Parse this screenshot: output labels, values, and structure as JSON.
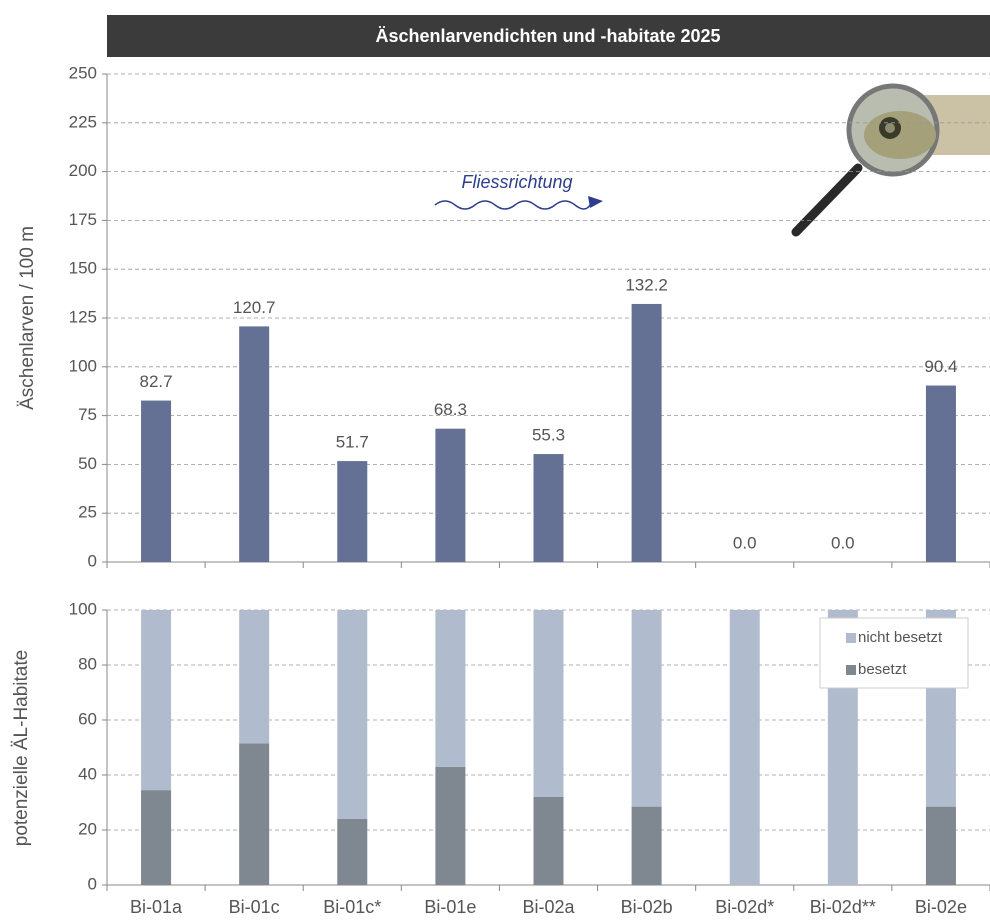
{
  "chart_data": [
    {
      "type": "bar",
      "title": "Äschenlarvendichten und -habitate 2025",
      "y_label": "Äschenlarven / 100 m",
      "annotation": "Fliessrichtung",
      "values": [
        82.7,
        120.7,
        51.7,
        68.3,
        55.3,
        132.2,
        0.0,
        0.0,
        90.4
      ],
      "value_labels": [
        "82.7",
        "120.7",
        "51.7",
        "68.3",
        "55.3",
        "132.2",
        "0.0",
        "0.0",
        "90.4"
      ],
      "color": "#647194",
      "ylim": [
        0,
        250
      ],
      "yticks": [
        0,
        25,
        50,
        75,
        100,
        125,
        150,
        175,
        200,
        225,
        250
      ],
      "grid": true
    },
    {
      "type": "stacked_bar",
      "y_label": "potenzielle ÄL-Habitate",
      "categories": [
        "Bi-01a",
        "Bi-01c",
        "Bi-01c*",
        "Bi-01e",
        "Bi-02a",
        "Bi-02b",
        "Bi-02d*",
        "Bi-02d**",
        "Bi-02e"
      ],
      "series": [
        {
          "name": "besetzt",
          "color": "#7f8790",
          "values": [
            34.5,
            51.5,
            24,
            43,
            32,
            28.5,
            0,
            0,
            28.5
          ]
        },
        {
          "name": "nicht besetzt",
          "color": "#b0bccd",
          "values": [
            65.5,
            48.5,
            76,
            57,
            68,
            71.5,
            100,
            100,
            71.5
          ]
        }
      ],
      "ylim": [
        0,
        100
      ],
      "yticks": [
        0,
        20,
        40,
        60,
        80,
        100
      ],
      "grid": true,
      "legend": "upper right"
    }
  ]
}
